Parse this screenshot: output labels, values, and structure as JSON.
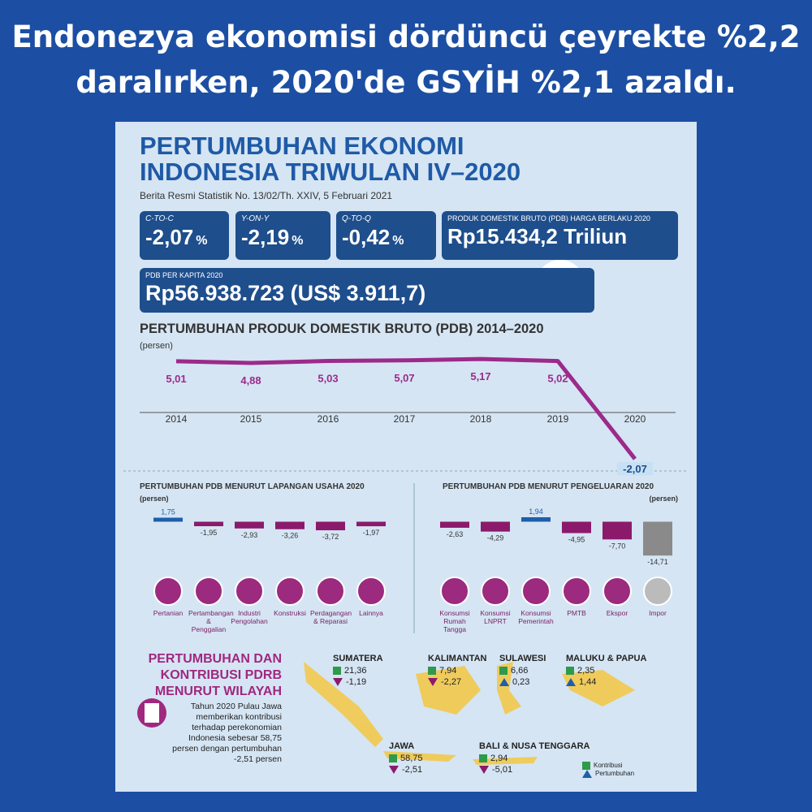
{
  "headline": [
    "Endonezya ekonomisi dördüncü çeyrekte %2,2",
    "daralırken, 2020'de GSYİH %2,1 azaldı."
  ],
  "infographic": {
    "title": [
      "PERTUMBUHAN EKONOMI",
      "INDONESIA TRIWULAN IV–2020"
    ],
    "source": "Berita Resmi Statistik No. 13/02/Th. XXIV, 5 Februari 2021",
    "stats": [
      {
        "label": "C-TO-C",
        "value": "-2,07",
        "unit": "%"
      },
      {
        "label": "Y-ON-Y",
        "value": "-2,19",
        "unit": "%"
      },
      {
        "label": "Q-TO-Q",
        "value": "-0,42",
        "unit": "%"
      }
    ],
    "pdb": {
      "label": "PRODUK DOMESTIK BRUTO (PDB) HARGA BERLAKU 2020",
      "value": "Rp15.434,2 Triliun"
    },
    "per_capita": {
      "label": "PDB PER KAPITA 2020",
      "value": "Rp56.938.723 (US$ 3.911,7)"
    },
    "region": {
      "title": [
        "PERTUMBUHAN DAN",
        "KONTRIBUSI PDRB",
        "MENURUT WILAYAH"
      ],
      "note": "Tahun 2020 Pulau Jawa memberikan kontribusi terhadap perekonomian Indonesia sebesar 58,75 persen dengan pertumbuhan -2,51 persen",
      "areas": [
        {
          "name": "SUMATERA",
          "kontribusi": "21,36",
          "pertumbuhan": "-1,19"
        },
        {
          "name": "KALIMANTAN",
          "kontribusi": "7,94",
          "pertumbuhan": "-2,27"
        },
        {
          "name": "SULAWESI",
          "kontribusi": "6,66",
          "pertumbuhan": "0,23"
        },
        {
          "name": "MALUKU & PAPUA",
          "kontribusi": "2,35",
          "pertumbuhan": "1,44"
        },
        {
          "name": "JAWA",
          "kontribusi": "58,75",
          "pertumbuhan": "-2,51"
        },
        {
          "name": "BALI & NUSA TENGGARA",
          "kontribusi": "2,94",
          "pertumbuhan": "-5,01"
        }
      ],
      "legend": [
        "Kontribusi",
        "Pertumbuhan"
      ]
    }
  },
  "chart_data": [
    {
      "type": "line",
      "title": "PERTUMBUHAN PRODUK DOMESTIK BRUTO (PDB) 2014–2020",
      "y_label": "(persen)",
      "categories": [
        "2014",
        "2015",
        "2016",
        "2017",
        "2018",
        "2019",
        "2020"
      ],
      "values": [
        5.01,
        4.88,
        5.03,
        5.07,
        5.17,
        5.02,
        -2.07
      ],
      "value_labels": [
        "5,01",
        "4,88",
        "5,03",
        "5,07",
        "5,17",
        "5,02",
        "-2,07"
      ],
      "color": "#9c2a8a",
      "ylim": [
        -3,
        6
      ]
    },
    {
      "type": "bar",
      "title": "PERTUMBUHAN PDB MENURUT LAPANGAN USAHA 2020",
      "y_label": "(persen)",
      "categories": [
        "Pertanian",
        "Pertambangan & Penggalian",
        "Industri Pengolahan",
        "Konstruksi",
        "Perdagangan & Reparasi",
        "Lainnya"
      ],
      "values": [
        1.75,
        -1.95,
        -2.93,
        -3.26,
        -3.72,
        -1.97
      ],
      "value_labels": [
        "1,75",
        "-1,95",
        "-2,93",
        "-3,26",
        "-3,72",
        "-1,97"
      ],
      "colors": [
        "#1f5fa8",
        "#8b1a6b",
        "#8b1a6b",
        "#8b1a6b",
        "#8b1a6b",
        "#8b1a6b"
      ],
      "ylim": [
        -15,
        3
      ]
    },
    {
      "type": "bar",
      "title": "PERTUMBUHAN PDB MENURUT PENGELUARAN 2020",
      "y_label": "(persen)",
      "categories": [
        "Konsumsi Rumah Tangga",
        "Konsumsi LNPRT",
        "Konsumsi Pemerintah",
        "PMTB",
        "Ekspor",
        "Impor"
      ],
      "values": [
        -2.63,
        -4.29,
        1.94,
        -4.95,
        -7.7,
        -14.71
      ],
      "value_labels": [
        "-2,63",
        "-4,29",
        "1,94",
        "-4,95",
        "-7,70",
        "-14,71"
      ],
      "colors": [
        "#8b1a6b",
        "#8b1a6b",
        "#1f5fa8",
        "#8b1a6b",
        "#8b1a6b",
        "#8a8a8a"
      ],
      "ylim": [
        -15,
        3
      ]
    }
  ]
}
